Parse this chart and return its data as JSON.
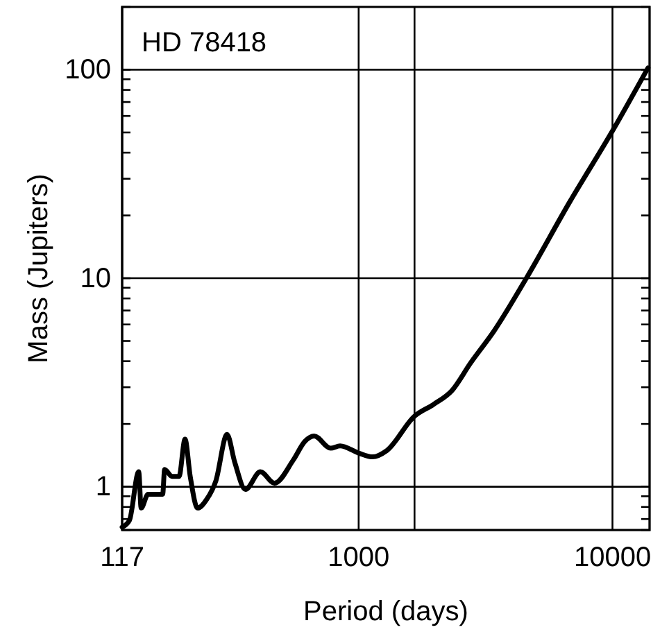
{
  "chart_data": {
    "type": "line",
    "title": "HD 78418",
    "xlabel": "Period (days)",
    "ylabel": "Mass (Jupiters)",
    "log": "xy",
    "grid": true,
    "marker": "none",
    "line_style": "solid",
    "xlim": [
      117,
      14000
    ],
    "ylim": [
      0.62,
      200
    ],
    "xticks": [
      117,
      1000,
      10000
    ],
    "yticks": [
      {
        "value": 0.7,
        "label": null
      },
      {
        "value": 0.8,
        "label": null
      },
      {
        "value": 0.9,
        "label": null
      },
      1,
      {
        "value": 2,
        "label": null
      },
      {
        "value": 3,
        "label": null
      },
      {
        "value": 4,
        "label": null
      },
      {
        "value": 5,
        "label": null
      },
      {
        "value": 6,
        "label": null
      },
      {
        "value": 7,
        "label": null
      },
      {
        "value": 8,
        "label": null
      },
      {
        "value": 9,
        "label": null
      },
      10,
      {
        "value": 20,
        "label": null
      },
      {
        "value": 30,
        "label": null
      },
      {
        "value": 40,
        "label": null
      },
      {
        "value": 50,
        "label": null
      },
      {
        "value": 60,
        "label": null
      },
      {
        "value": 70,
        "label": null
      },
      {
        "value": 80,
        "label": null
      },
      {
        "value": 90,
        "label": null
      },
      100
    ],
    "ref_lines": [
      {
        "axis": "x",
        "value": 1660,
        "color": "#000000"
      }
    ],
    "series": [
      {
        "color": "#000000",
        "x": [
          117,
          125,
          136,
          139,
          148,
          169,
          172,
          184,
          196,
          207,
          217,
          232,
          252,
          274,
          303,
          325,
          358,
          410,
          466,
          552,
          614,
          668,
          776,
          845,
          1000,
          1135,
          1290,
          1660,
          1970,
          2330,
          2760,
          3420,
          4600,
          6740,
          10090,
          13800
        ],
        "values": [
          0.64,
          0.69,
          1.18,
          0.79,
          0.92,
          0.92,
          1.21,
          1.12,
          1.12,
          1.69,
          1.12,
          0.79,
          0.87,
          1.07,
          1.78,
          1.31,
          0.97,
          1.18,
          1.04,
          1.34,
          1.65,
          1.75,
          1.53,
          1.57,
          1.45,
          1.39,
          1.49,
          2.18,
          2.48,
          2.89,
          3.92,
          5.6,
          10.1,
          22.9,
          51.8,
          102
        ]
      }
    ]
  }
}
